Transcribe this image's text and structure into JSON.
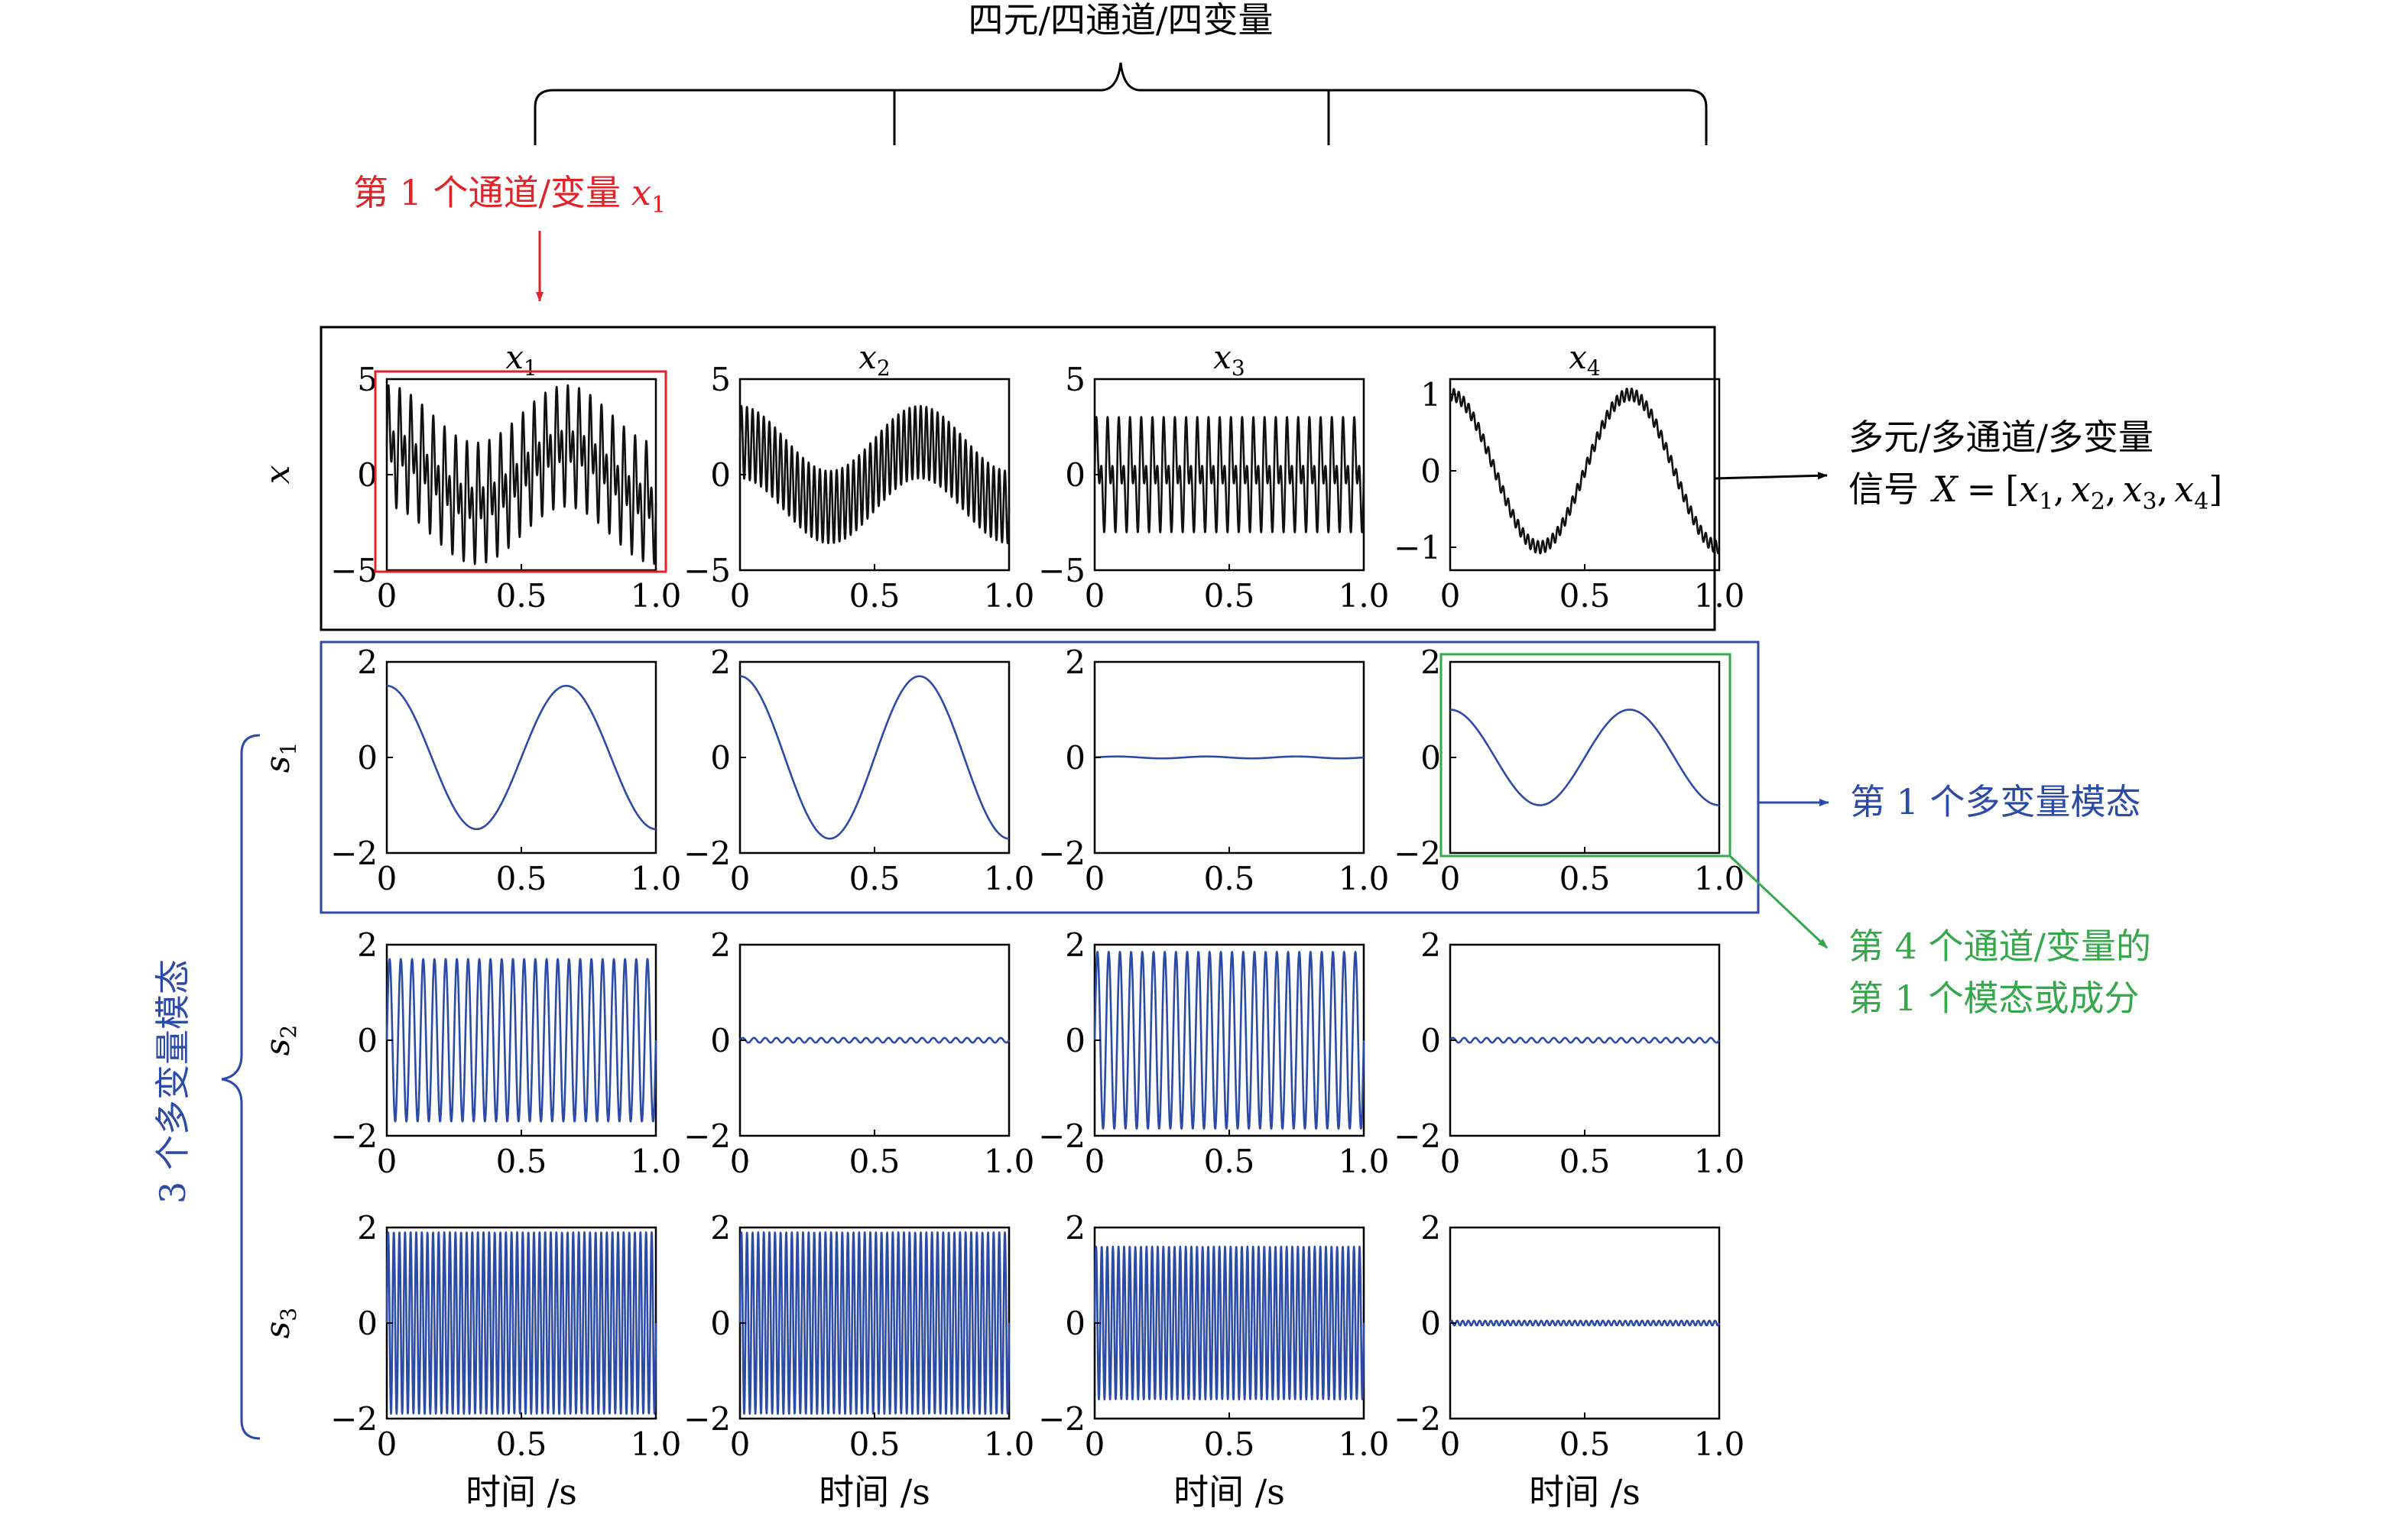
{
  "annotations": {
    "top_brace_label": "四元/四通道/四变量",
    "first_channel_label": "第 1 个通道/变量",
    "first_channel_var": "x",
    "first_channel_sub": "1",
    "signal_label_line1": "多元/多通道/多变量",
    "signal_label_line2": "信号",
    "signal_X": "X",
    "signal_eq": "=",
    "signal_lbr": "[",
    "signal_rbr": "]",
    "signal_vars": [
      {
        "var": "x",
        "sub": "1",
        "sep": ","
      },
      {
        "var": "x",
        "sub": "2",
        "sep": ","
      },
      {
        "var": "x",
        "sub": "3",
        "sep": ","
      },
      {
        "var": "x",
        "sub": "4",
        "sep": ""
      }
    ],
    "first_mode_label": "第 1 个多变量模态",
    "fourth_channel_line1": "第 4 个通道/变量的",
    "fourth_channel_line2": "第 1 个模态或成分",
    "modes_brace_label": "3 个多变量模态"
  },
  "colors": {
    "signal": "#111111",
    "mode": "#2c4ba8",
    "highlight_red": "#e32227",
    "highlight_blue": "#2c4ba8",
    "highlight_green": "#34a84a",
    "frame": "#000000"
  },
  "chart_data": {
    "type": "line",
    "layout": "grid-4x4",
    "x_tick_labels": [
      "0",
      "0.5",
      "1.0"
    ],
    "xlabel": "时间 /s",
    "xlim": [
      0,
      1
    ],
    "column_titles": [
      {
        "var": "x",
        "sub": "1"
      },
      {
        "var": "x",
        "sub": "2"
      },
      {
        "var": "x",
        "sub": "3"
      },
      {
        "var": "x",
        "sub": "4"
      }
    ],
    "rows": [
      {
        "label": "x",
        "sub": "",
        "panels": [
          {
            "ylim": [
              -5,
              5
            ],
            "y_ticks": [
              5,
              0,
              -5
            ],
            "y_tick_labels": [
              "5",
              "0",
              "−5"
            ],
            "color": "signal",
            "components": [
              {
                "a": 1.5,
                "f": 1.5,
                "p": 1.57
              },
              {
                "a": 1.7,
                "f": 24,
                "p": 0
              },
              {
                "a": 1.9,
                "f": 48,
                "p": 0
              }
            ]
          },
          {
            "ylim": [
              -5,
              5
            ],
            "y_ticks": [
              5,
              0,
              -5
            ],
            "y_tick_labels": [
              "5",
              "0",
              "−5"
            ],
            "color": "signal",
            "components": [
              {
                "a": 1.7,
                "f": 1.5,
                "p": 1.57
              },
              {
                "a": 1.9,
                "f": 48,
                "p": 0
              }
            ]
          },
          {
            "ylim": [
              -5,
              5
            ],
            "y_ticks": [
              5,
              0,
              -5
            ],
            "y_tick_labels": [
              "5",
              "0",
              "−5"
            ],
            "color": "signal",
            "components": [
              {
                "a": 1.85,
                "f": 24,
                "p": 0
              },
              {
                "a": 1.6,
                "f": 48,
                "p": 0
              }
            ]
          },
          {
            "ylim": [
              -1.3,
              1.2
            ],
            "y_ticks": [
              1,
              0,
              -1
            ],
            "y_tick_labels": [
              "1",
              "0",
              "−1"
            ],
            "color": "signal",
            "components": [
              {
                "a": 1.0,
                "f": 1.5,
                "p": 1.57
              }
            ],
            "noise": 0.05
          }
        ]
      },
      {
        "label": "s",
        "sub": "1",
        "panels": [
          {
            "ylim": [
              -2,
              2
            ],
            "y_ticks": [
              2,
              0,
              -2
            ],
            "y_tick_labels": [
              "2",
              "0",
              "−2"
            ],
            "color": "mode",
            "components": [
              {
                "a": 1.5,
                "f": 1.5,
                "p": 1.57
              }
            ]
          },
          {
            "ylim": [
              -2,
              2
            ],
            "y_ticks": [
              2,
              0,
              -2
            ],
            "y_tick_labels": [
              "2",
              "0",
              "−2"
            ],
            "color": "mode",
            "components": [
              {
                "a": 1.7,
                "f": 1.5,
                "p": 1.57
              }
            ]
          },
          {
            "ylim": [
              -2,
              2
            ],
            "y_ticks": [
              2,
              0,
              -2
            ],
            "y_tick_labels": [
              "2",
              "0",
              "−2"
            ],
            "color": "mode",
            "components": [
              {
                "a": 0.02,
                "f": 3,
                "p": 0
              }
            ]
          },
          {
            "ylim": [
              -2,
              2
            ],
            "y_ticks": [
              2,
              0,
              -2
            ],
            "y_tick_labels": [
              "2",
              "0",
              "−2"
            ],
            "color": "mode",
            "components": [
              {
                "a": 1.0,
                "f": 1.5,
                "p": 1.57
              }
            ]
          }
        ]
      },
      {
        "label": "s",
        "sub": "2",
        "panels": [
          {
            "ylim": [
              -2,
              2
            ],
            "y_ticks": [
              2,
              0,
              -2
            ],
            "y_tick_labels": [
              "2",
              "0",
              "−2"
            ],
            "color": "mode",
            "components": [
              {
                "a": 1.7,
                "f": 24,
                "p": 0
              }
            ]
          },
          {
            "ylim": [
              -2,
              2
            ],
            "y_ticks": [
              2,
              0,
              -2
            ],
            "y_tick_labels": [
              "2",
              "0",
              "−2"
            ],
            "color": "mode",
            "components": [
              {
                "a": 0.05,
                "f": 24,
                "p": 0
              }
            ]
          },
          {
            "ylim": [
              -2,
              2
            ],
            "y_ticks": [
              2,
              0,
              -2
            ],
            "y_tick_labels": [
              "2",
              "0",
              "−2"
            ],
            "color": "mode",
            "components": [
              {
                "a": 1.85,
                "f": 24,
                "p": 0
              }
            ]
          },
          {
            "ylim": [
              -2,
              2
            ],
            "y_ticks": [
              2,
              0,
              -2
            ],
            "y_tick_labels": [
              "2",
              "0",
              "−2"
            ],
            "color": "mode",
            "components": [
              {
                "a": 0.05,
                "f": 24,
                "p": 0
              }
            ]
          }
        ]
      },
      {
        "label": "s",
        "sub": "3",
        "panels": [
          {
            "ylim": [
              -2,
              2
            ],
            "y_ticks": [
              2,
              0,
              -2
            ],
            "y_tick_labels": [
              "2",
              "0",
              "−2"
            ],
            "color": "mode",
            "components": [
              {
                "a": 1.9,
                "f": 48,
                "p": 0
              }
            ]
          },
          {
            "ylim": [
              -2,
              2
            ],
            "y_ticks": [
              2,
              0,
              -2
            ],
            "y_tick_labels": [
              "2",
              "0",
              "−2"
            ],
            "color": "mode",
            "components": [
              {
                "a": 1.9,
                "f": 48,
                "p": 0
              }
            ]
          },
          {
            "ylim": [
              -2,
              2
            ],
            "y_ticks": [
              2,
              0,
              -2
            ],
            "y_tick_labels": [
              "2",
              "0",
              "−2"
            ],
            "color": "mode",
            "components": [
              {
                "a": 1.6,
                "f": 48,
                "p": 0
              }
            ]
          },
          {
            "ylim": [
              -2,
              2
            ],
            "y_ticks": [
              2,
              0,
              -2
            ],
            "y_tick_labels": [
              "2",
              "0",
              "−2"
            ],
            "color": "mode",
            "components": [
              {
                "a": 0.05,
                "f": 48,
                "p": 0
              }
            ]
          }
        ]
      }
    ]
  }
}
